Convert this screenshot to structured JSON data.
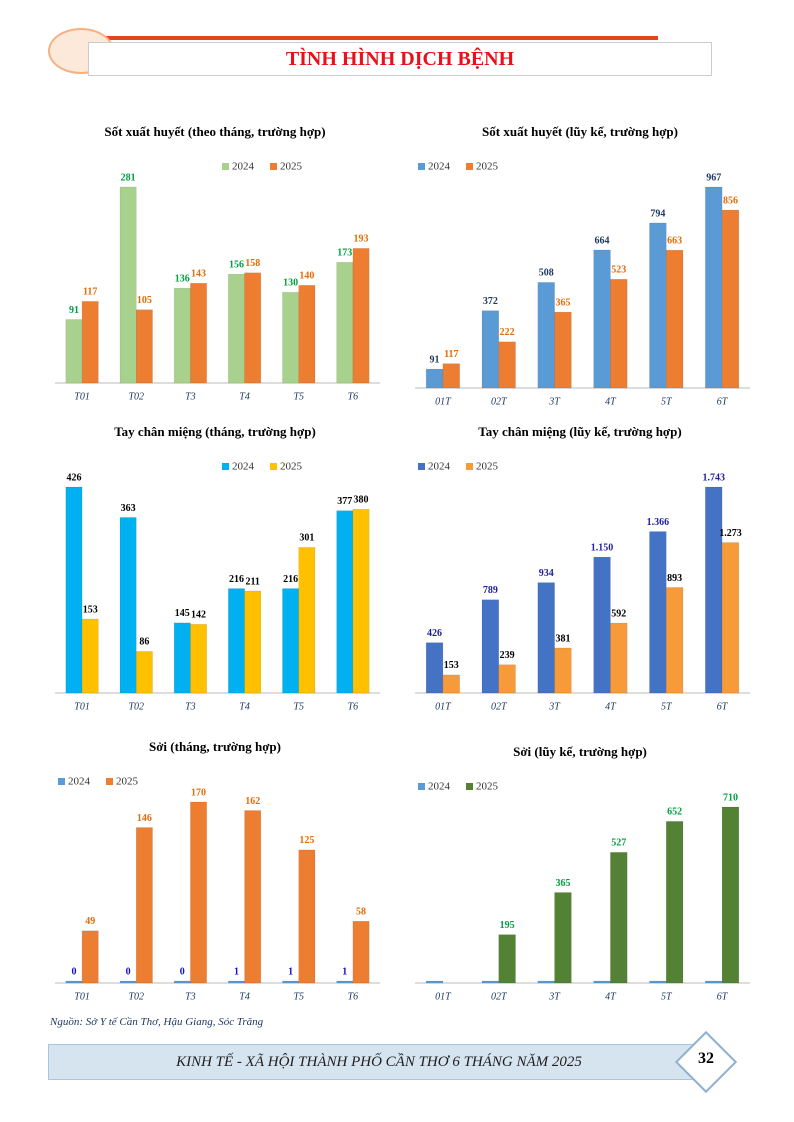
{
  "header": {
    "title": "TÌNH HÌNH DỊCH BỆNH"
  },
  "chart_data": [
    {
      "type": "bar",
      "title": "Sốt xuất huyết (theo tháng, trường hợp)",
      "legend": "top-right",
      "categories": [
        "T01",
        "T02",
        "T3",
        "T4",
        "T5",
        "T6"
      ],
      "series": [
        {
          "name": "2024",
          "color": "#a9d18e",
          "label_color": "#00a040",
          "values": [
            91,
            281,
            136,
            156,
            130,
            173
          ]
        },
        {
          "name": "2025",
          "color": "#ed7d31",
          "label_color": "#e36c09",
          "values": [
            117,
            105,
            143,
            158,
            140,
            193
          ]
        }
      ]
    },
    {
      "type": "bar",
      "title": "Sốt xuất huyết (lũy kế, trường hợp)",
      "legend": "top-left",
      "categories": [
        "01T",
        "02T",
        "3T",
        "4T",
        "5T",
        "6T"
      ],
      "series": [
        {
          "name": "2024",
          "color": "#5b9bd5",
          "label_color": "#1f3864",
          "values": [
            91,
            372,
            508,
            664,
            794,
            967
          ]
        },
        {
          "name": "2025",
          "color": "#ed7d31",
          "label_color": "#e36c09",
          "values": [
            117,
            222,
            365,
            523,
            663,
            856
          ]
        }
      ]
    },
    {
      "type": "bar",
      "title": "Tay chân miệng (tháng, trường hợp)",
      "legend": "top-right",
      "categories": [
        "T01",
        "T02",
        "T3",
        "T4",
        "T5",
        "T6"
      ],
      "series": [
        {
          "name": "2024",
          "color": "#00b0f0",
          "label_color": "#000000",
          "values": [
            426,
            363,
            145,
            216,
            216,
            377
          ]
        },
        {
          "name": "2025",
          "color": "#ffc000",
          "label_color": "#000000",
          "values": [
            153,
            86,
            142,
            211,
            301,
            380
          ]
        }
      ]
    },
    {
      "type": "bar",
      "title": "Tay chân miệng (lũy kế, trường hợp)",
      "legend": "top-left",
      "categories": [
        "01T",
        "02T",
        "3T",
        "4T",
        "5T",
        "6T"
      ],
      "series": [
        {
          "name": "2024",
          "color": "#4472c4",
          "label_color": "#1f1f99",
          "values": [
            426,
            789,
            934,
            1150,
            1366,
            1743
          ],
          "value_labels": [
            "426",
            "789",
            "934",
            "1.150",
            "1.366",
            "1.743"
          ]
        },
        {
          "name": "2025",
          "color": "#f79a3a",
          "label_color": "#000000",
          "values": [
            153,
            239,
            381,
            592,
            893,
            1273
          ],
          "value_labels": [
            "153",
            "239",
            "381",
            "592",
            "893",
            "1.273"
          ]
        }
      ]
    },
    {
      "type": "bar",
      "title": "Sởi (tháng, trường hợp)",
      "legend": "top-left",
      "categories": [
        "T01",
        "T02",
        "T3",
        "T4",
        "T5",
        "T6"
      ],
      "series": [
        {
          "name": "2024",
          "color": "#5b9bd5",
          "label_color": "#1010c0",
          "values": [
            0,
            0,
            0,
            1,
            1,
            1
          ]
        },
        {
          "name": "2025",
          "color": "#ed7d31",
          "label_color": "#e36c09",
          "values": [
            49,
            146,
            170,
            162,
            125,
            58
          ]
        }
      ]
    },
    {
      "type": "bar",
      "title": "Sởi (lũy kế, trường hợp)",
      "legend": "top-left",
      "categories": [
        "01T",
        "02T",
        "3T",
        "4T",
        "5T",
        "6T"
      ],
      "series": [
        {
          "name": "2024",
          "color": "#5b9bd5",
          "label_color": "#1f3864",
          "data_labels": false,
          "values": [
            0,
            0,
            0,
            1,
            2,
            3
          ]
        },
        {
          "name": "2025",
          "color": "#548235",
          "label_color": "#00a040",
          "values": [
            null,
            195,
            365,
            527,
            652,
            710
          ]
        }
      ]
    }
  ],
  "source": "Nguồn: Sở Y tế Cần Thơ, Hậu Giang, Sóc Trăng",
  "footer": {
    "title": "KINH TẾ - XÃ HỘI THÀNH PHỐ CẦN THƠ 6 THÁNG NĂM 2025",
    "page": "32"
  }
}
